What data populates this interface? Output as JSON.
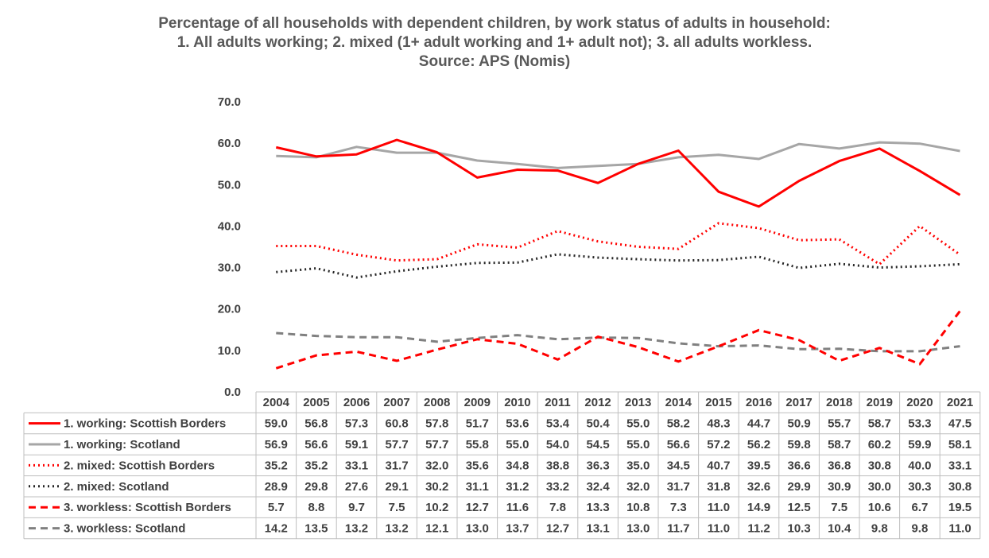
{
  "title_lines": [
    "Percentage of all households with dependent children, by work status of adults in household:",
    "1. All adults working; 2. mixed (1+ adult working and 1+ adult not); 3. all adults workless.",
    "Source: APS (Nomis)"
  ],
  "chart_data": {
    "type": "line",
    "title": "Percentage of all households with dependent children, by work status of adults in household: 1. All adults working; 2. mixed (1+ adult working and 1+ adult not); 3. all adults workless. Source: APS (Nomis)",
    "x": [
      "2004",
      "2005",
      "2006",
      "2007",
      "2008",
      "2009",
      "2010",
      "2011",
      "2012",
      "2013",
      "2014",
      "2015",
      "2016",
      "2017",
      "2018",
      "2019",
      "2020",
      "2021"
    ],
    "ylim": [
      0,
      70
    ],
    "yticks": [
      "0.0",
      "10.0",
      "20.0",
      "30.0",
      "40.0",
      "50.0",
      "60.0",
      "70.0"
    ],
    "legend": "data-table",
    "grid": false,
    "series": [
      {
        "name": "1. working: Scottish Borders",
        "color": "#ff0000",
        "dash": "solid",
        "values": [
          59.0,
          56.8,
          57.3,
          60.8,
          57.8,
          51.7,
          53.6,
          53.4,
          50.4,
          55.0,
          58.2,
          48.3,
          44.7,
          50.9,
          55.7,
          58.7,
          53.3,
          47.5
        ]
      },
      {
        "name": "1. working: Scotland",
        "color": "#a6a6a6",
        "dash": "solid",
        "values": [
          56.9,
          56.6,
          59.1,
          57.7,
          57.7,
          55.8,
          55.0,
          54.0,
          54.5,
          55.0,
          56.6,
          57.2,
          56.2,
          59.8,
          58.7,
          60.2,
          59.9,
          58.1
        ]
      },
      {
        "name": "2. mixed: Scottish Borders",
        "color": "#ff0000",
        "dash": "dot",
        "values": [
          35.2,
          35.2,
          33.1,
          31.7,
          32.0,
          35.6,
          34.8,
          38.8,
          36.3,
          35.0,
          34.5,
          40.7,
          39.5,
          36.6,
          36.8,
          30.8,
          40.0,
          33.1
        ]
      },
      {
        "name": "2. mixed: Scotland",
        "color": "#262626",
        "dash": "dot",
        "values": [
          28.9,
          29.8,
          27.6,
          29.1,
          30.2,
          31.1,
          31.2,
          33.2,
          32.4,
          32.0,
          31.7,
          31.8,
          32.6,
          29.9,
          30.9,
          30.0,
          30.3,
          30.8
        ]
      },
      {
        "name": "3. workless: Scottish Borders",
        "color": "#ff0000",
        "dash": "dash",
        "values": [
          5.7,
          8.8,
          9.7,
          7.5,
          10.2,
          12.7,
          11.6,
          7.8,
          13.3,
          10.8,
          7.3,
          11.0,
          14.9,
          12.5,
          7.5,
          10.6,
          6.7,
          19.5
        ]
      },
      {
        "name": "3. workless: Scotland",
        "color": "#808080",
        "dash": "dash",
        "values": [
          14.2,
          13.5,
          13.2,
          13.2,
          12.1,
          13.0,
          13.7,
          12.7,
          13.1,
          13.0,
          11.7,
          11.0,
          11.2,
          10.3,
          10.4,
          9.8,
          9.8,
          11.0
        ]
      }
    ]
  }
}
